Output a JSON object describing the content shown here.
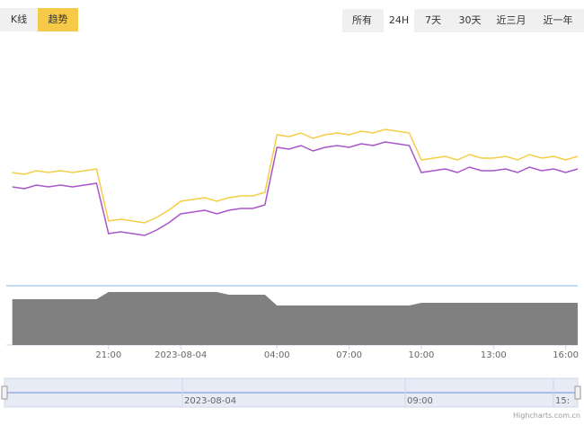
{
  "toolbar": {
    "tabs": [
      "K线",
      "趋势"
    ],
    "ranges": [
      "所有",
      "24H",
      "7天",
      "30天",
      "近三月",
      "近一年"
    ]
  },
  "chart_data": [
    {
      "type": "line",
      "x": [
        17,
        17.5,
        18,
        18.5,
        19,
        19.5,
        20,
        20.5,
        21,
        21.5,
        22,
        22.5,
        23,
        23.5,
        24,
        24.5,
        25,
        25.5,
        26,
        26.5,
        27,
        27.5,
        28,
        28.5,
        29,
        29.5,
        30,
        30.5,
        31,
        31.5,
        32,
        32.5,
        33,
        33.5,
        34,
        34.5,
        35,
        35.5,
        36,
        36.5,
        37,
        37.5,
        38,
        38.5,
        39,
        39.5,
        40,
        40.5
      ],
      "series": [
        {
          "color": "#f5cd45",
          "values": [
            54,
            53,
            55,
            54,
            55,
            54,
            55,
            56,
            27,
            28,
            27,
            26,
            29,
            33,
            38,
            39,
            40,
            38,
            40,
            41,
            41,
            43,
            75,
            74,
            76,
            73,
            75,
            76,
            75,
            77,
            76,
            78,
            77,
            76,
            61,
            62,
            63,
            61,
            64,
            62,
            62,
            63,
            61,
            64,
            62,
            63,
            61,
            63
          ]
        },
        {
          "color": "#a855c8",
          "values": [
            46,
            45,
            47,
            46,
            47,
            46,
            47,
            48,
            20,
            21,
            20,
            19,
            22,
            26,
            31,
            32,
            33,
            31,
            33,
            34,
            34,
            36,
            68,
            67,
            69,
            66,
            68,
            69,
            68,
            70,
            69,
            71,
            70,
            69,
            54,
            55,
            56,
            54,
            57,
            55,
            55,
            56,
            54,
            57,
            55,
            56,
            54,
            56
          ]
        }
      ],
      "xlim": [
        16.75,
        40.5
      ],
      "ylim": [
        0,
        130
      ],
      "xticks": [
        {
          "value": 21,
          "label": "21:00"
        },
        {
          "value": 24,
          "label": "2023-08-04"
        },
        {
          "value": 28,
          "label": "04:00"
        },
        {
          "value": 31,
          "label": "07:00"
        },
        {
          "value": 34,
          "label": "10:00"
        },
        {
          "value": 37,
          "label": "13:00"
        },
        {
          "value": 40,
          "label": "16:00"
        }
      ]
    },
    {
      "type": "area",
      "x": [
        17,
        17.5,
        18,
        18.5,
        19,
        19.5,
        20,
        20.5,
        21,
        21.5,
        22,
        22.5,
        23,
        23.5,
        24,
        24.5,
        25,
        25.5,
        26,
        26.5,
        27,
        27.5,
        28,
        28.5,
        29,
        29.5,
        30,
        30.5,
        31,
        31.5,
        32,
        32.5,
        33,
        33.5,
        34,
        34.5,
        35,
        35.5,
        36,
        36.5,
        37,
        37.5,
        38,
        38.5,
        39,
        39.5,
        40,
        40.5
      ],
      "color": "#808080",
      "values": [
        51,
        51,
        51,
        51,
        51,
        51,
        51,
        51,
        59,
        59,
        59,
        59,
        59,
        59,
        59,
        59,
        59,
        59,
        56,
        56,
        56,
        56,
        44,
        44,
        44,
        44,
        44,
        44,
        44,
        44,
        44,
        44,
        44,
        44,
        47,
        47,
        47,
        47,
        47,
        47,
        47,
        47,
        47,
        47,
        47,
        47,
        47,
        47
      ],
      "xlim": [
        16.75,
        40.5
      ],
      "ylim": [
        0,
        70
      ]
    }
  ],
  "navigator": {
    "labels": [
      "2023-08-04",
      "09:00",
      "15:"
    ]
  },
  "credits": "Highcharts.com.cn"
}
